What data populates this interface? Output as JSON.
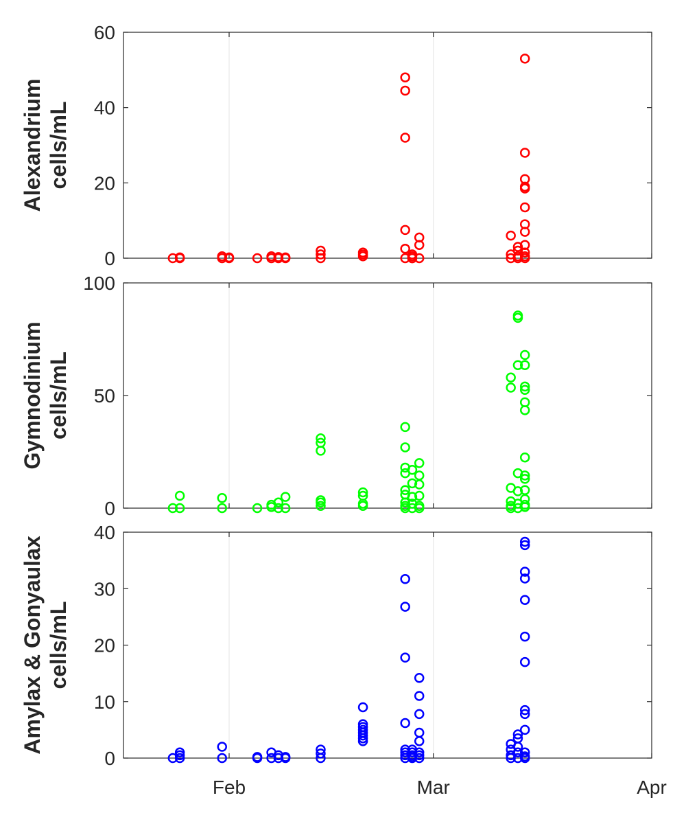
{
  "chart_data": [
    {
      "type": "scatter",
      "ylabel": [
        "Alexandrium",
        "cells/mL"
      ],
      "ylim": [
        0,
        60
      ],
      "yticks": [
        0,
        20,
        40,
        60
      ],
      "xlim": [
        "2024-01-17",
        "2024-04-01"
      ],
      "xticks": [
        {
          "date": "2024-02-01",
          "label": "Feb"
        },
        {
          "date": "2024-03-01",
          "label": "Mar"
        },
        {
          "date": "2024-04-01",
          "label": "Apr"
        }
      ],
      "color": "#ff0000",
      "grid": "vertical",
      "series": [
        {
          "points": [
            [
              "2024-01-24",
              0
            ],
            [
              "2024-01-25",
              0.2
            ],
            [
              "2024-01-25",
              0
            ],
            [
              "2024-01-31",
              0
            ],
            [
              "2024-01-31",
              0.5
            ],
            [
              "2024-02-01",
              0.2
            ],
            [
              "2024-02-01",
              0
            ],
            [
              "2024-02-05",
              0
            ],
            [
              "2024-02-07",
              0
            ],
            [
              "2024-02-07",
              0.5
            ],
            [
              "2024-02-08",
              0
            ],
            [
              "2024-02-08",
              0.3
            ],
            [
              "2024-02-09",
              0
            ],
            [
              "2024-02-09",
              0.2
            ],
            [
              "2024-02-14",
              0
            ],
            [
              "2024-02-14",
              1
            ],
            [
              "2024-02-14",
              2
            ],
            [
              "2024-02-20",
              0.5
            ],
            [
              "2024-02-20",
              1
            ],
            [
              "2024-02-20",
              1.5
            ],
            [
              "2024-02-26",
              0
            ],
            [
              "2024-02-26",
              32
            ],
            [
              "2024-02-26",
              44.5
            ],
            [
              "2024-02-26",
              48
            ],
            [
              "2024-02-26",
              7.5
            ],
            [
              "2024-02-26",
              2.5
            ],
            [
              "2024-02-27",
              0
            ],
            [
              "2024-02-27",
              1
            ],
            [
              "2024-02-27",
              0.5
            ],
            [
              "2024-02-28",
              3.5
            ],
            [
              "2024-02-28",
              5.5
            ],
            [
              "2024-02-27",
              0
            ],
            [
              "2024-02-28",
              0
            ],
            [
              "2024-03-12",
              0
            ],
            [
              "2024-03-12",
              1
            ],
            [
              "2024-03-12",
              6
            ],
            [
              "2024-03-13",
              2
            ],
            [
              "2024-03-13",
              3
            ],
            [
              "2024-03-13",
              0.5
            ],
            [
              "2024-03-13",
              0
            ],
            [
              "2024-03-14",
              53
            ],
            [
              "2024-03-14",
              28
            ],
            [
              "2024-03-14",
              21
            ],
            [
              "2024-03-14",
              19
            ],
            [
              "2024-03-14",
              18.5
            ],
            [
              "2024-03-14",
              13.5
            ],
            [
              "2024-03-14",
              9
            ],
            [
              "2024-03-14",
              7
            ],
            [
              "2024-03-14",
              3.5
            ],
            [
              "2024-03-14",
              1.5
            ],
            [
              "2024-03-14",
              0.5
            ],
            [
              "2024-03-14",
              0
            ]
          ]
        }
      ]
    },
    {
      "type": "scatter",
      "ylabel": [
        "Gymnodinium",
        "cells/mL"
      ],
      "ylim": [
        0,
        100
      ],
      "yticks": [
        0,
        50,
        100
      ],
      "xlim": [
        "2024-01-17",
        "2024-04-01"
      ],
      "xticks": [
        {
          "date": "2024-02-01",
          "label": "Feb"
        },
        {
          "date": "2024-03-01",
          "label": "Mar"
        },
        {
          "date": "2024-04-01",
          "label": "Apr"
        }
      ],
      "color": "#00ff00",
      "grid": "vertical",
      "series": [
        {
          "points": [
            [
              "2024-01-24",
              0
            ],
            [
              "2024-01-25",
              5.5
            ],
            [
              "2024-01-25",
              0
            ],
            [
              "2024-01-31",
              4.5
            ],
            [
              "2024-01-31",
              0
            ],
            [
              "2024-02-05",
              0
            ],
            [
              "2024-02-07",
              0.5
            ],
            [
              "2024-02-07",
              1.5
            ],
            [
              "2024-02-08",
              0
            ],
            [
              "2024-02-08",
              2.5
            ],
            [
              "2024-02-09",
              5
            ],
            [
              "2024-02-09",
              0
            ],
            [
              "2024-02-14",
              31
            ],
            [
              "2024-02-14",
              29
            ],
            [
              "2024-02-14",
              25.5
            ],
            [
              "2024-02-14",
              3.5
            ],
            [
              "2024-02-14",
              2.5
            ],
            [
              "2024-02-14",
              1
            ],
            [
              "2024-02-20",
              7
            ],
            [
              "2024-02-20",
              5.5
            ],
            [
              "2024-02-20",
              2
            ],
            [
              "2024-02-20",
              1
            ],
            [
              "2024-02-26",
              36
            ],
            [
              "2024-02-26",
              27
            ],
            [
              "2024-02-26",
              18
            ],
            [
              "2024-02-26",
              15.5
            ],
            [
              "2024-02-26",
              8
            ],
            [
              "2024-02-26",
              6
            ],
            [
              "2024-02-26",
              2.5
            ],
            [
              "2024-02-26",
              1
            ],
            [
              "2024-02-26",
              0
            ],
            [
              "2024-02-27",
              17
            ],
            [
              "2024-02-27",
              11
            ],
            [
              "2024-02-27",
              5
            ],
            [
              "2024-02-27",
              2
            ],
            [
              "2024-02-27",
              0
            ],
            [
              "2024-02-28",
              20
            ],
            [
              "2024-02-28",
              14.5
            ],
            [
              "2024-02-28",
              10.5
            ],
            [
              "2024-02-28",
              5.5
            ],
            [
              "2024-02-28",
              1
            ],
            [
              "2024-02-28",
              0
            ],
            [
              "2024-03-12",
              58
            ],
            [
              "2024-03-12",
              53.5
            ],
            [
              "2024-03-12",
              9
            ],
            [
              "2024-03-12",
              3
            ],
            [
              "2024-03-12",
              1
            ],
            [
              "2024-03-12",
              0
            ],
            [
              "2024-03-13",
              85.5
            ],
            [
              "2024-03-13",
              84.5
            ],
            [
              "2024-03-13",
              63.5
            ],
            [
              "2024-03-13",
              15.5
            ],
            [
              "2024-03-13",
              7.5
            ],
            [
              "2024-03-13",
              2
            ],
            [
              "2024-03-13",
              0
            ],
            [
              "2024-03-14",
              68
            ],
            [
              "2024-03-14",
              63.5
            ],
            [
              "2024-03-14",
              54
            ],
            [
              "2024-03-14",
              52.5
            ],
            [
              "2024-03-14",
              47
            ],
            [
              "2024-03-14",
              43.5
            ],
            [
              "2024-03-14",
              22.5
            ],
            [
              "2024-03-14",
              14.5
            ],
            [
              "2024-03-14",
              13
            ],
            [
              "2024-03-14",
              8
            ],
            [
              "2024-03-14",
              4
            ],
            [
              "2024-03-14",
              1.5
            ],
            [
              "2024-03-14",
              0.5
            ]
          ]
        }
      ]
    },
    {
      "type": "scatter",
      "ylabel": [
        "Amylax & Gonyaulax",
        "cells/mL"
      ],
      "ylim": [
        0,
        40
      ],
      "yticks": [
        0,
        10,
        20,
        30,
        40
      ],
      "xlim": [
        "2024-01-17",
        "2024-04-01"
      ],
      "xticks": [
        {
          "date": "2024-02-01",
          "label": "Feb"
        },
        {
          "date": "2024-03-01",
          "label": "Mar"
        },
        {
          "date": "2024-04-01",
          "label": "Apr"
        }
      ],
      "color": "#0000ff",
      "grid": "vertical",
      "series": [
        {
          "points": [
            [
              "2024-01-24",
              0
            ],
            [
              "2024-01-25",
              1
            ],
            [
              "2024-01-25",
              0.5
            ],
            [
              "2024-01-25",
              0
            ],
            [
              "2024-01-31",
              2
            ],
            [
              "2024-01-31",
              0
            ],
            [
              "2024-02-05",
              0
            ],
            [
              "2024-02-05",
              0.2
            ],
            [
              "2024-02-07",
              0
            ],
            [
              "2024-02-07",
              1
            ],
            [
              "2024-02-08",
              0.5
            ],
            [
              "2024-02-08",
              0
            ],
            [
              "2024-02-09",
              0.2
            ],
            [
              "2024-02-09",
              0
            ],
            [
              "2024-02-14",
              1.5
            ],
            [
              "2024-02-14",
              0.8
            ],
            [
              "2024-02-14",
              0
            ],
            [
              "2024-02-20",
              9
            ],
            [
              "2024-02-20",
              6
            ],
            [
              "2024-02-20",
              5.5
            ],
            [
              "2024-02-20",
              5
            ],
            [
              "2024-02-20",
              4.5
            ],
            [
              "2024-02-20",
              4
            ],
            [
              "2024-02-20",
              3.5
            ],
            [
              "2024-02-20",
              3
            ],
            [
              "2024-02-26",
              31.7
            ],
            [
              "2024-02-26",
              26.8
            ],
            [
              "2024-02-26",
              17.8
            ],
            [
              "2024-02-26",
              6.2
            ],
            [
              "2024-02-26",
              1.5
            ],
            [
              "2024-02-26",
              1
            ],
            [
              "2024-02-26",
              0.5
            ],
            [
              "2024-02-26",
              0
            ],
            [
              "2024-02-27",
              1.5
            ],
            [
              "2024-02-27",
              1
            ],
            [
              "2024-02-27",
              0.5
            ],
            [
              "2024-02-27",
              0.2
            ],
            [
              "2024-02-27",
              0
            ],
            [
              "2024-02-28",
              14.2
            ],
            [
              "2024-02-28",
              11
            ],
            [
              "2024-02-28",
              7.8
            ],
            [
              "2024-02-28",
              4.5
            ],
            [
              "2024-02-28",
              3
            ],
            [
              "2024-02-28",
              1
            ],
            [
              "2024-02-28",
              0.5
            ],
            [
              "2024-02-28",
              0
            ],
            [
              "2024-03-12",
              2.5
            ],
            [
              "2024-03-12",
              1.5
            ],
            [
              "2024-03-12",
              0.5
            ],
            [
              "2024-03-12",
              0
            ],
            [
              "2024-03-13",
              4.2
            ],
            [
              "2024-03-13",
              3.5
            ],
            [
              "2024-03-13",
              2
            ],
            [
              "2024-03-13",
              1
            ],
            [
              "2024-03-13",
              0
            ],
            [
              "2024-03-14",
              38.3
            ],
            [
              "2024-03-14",
              37.7
            ],
            [
              "2024-03-14",
              33
            ],
            [
              "2024-03-14",
              31.8
            ],
            [
              "2024-03-14",
              28
            ],
            [
              "2024-03-14",
              21.5
            ],
            [
              "2024-03-14",
              17
            ],
            [
              "2024-03-14",
              8.5
            ],
            [
              "2024-03-14",
              7.8
            ],
            [
              "2024-03-14",
              5
            ],
            [
              "2024-03-14",
              1
            ],
            [
              "2024-03-14",
              0.3
            ],
            [
              "2024-03-14",
              0
            ]
          ]
        }
      ]
    }
  ]
}
